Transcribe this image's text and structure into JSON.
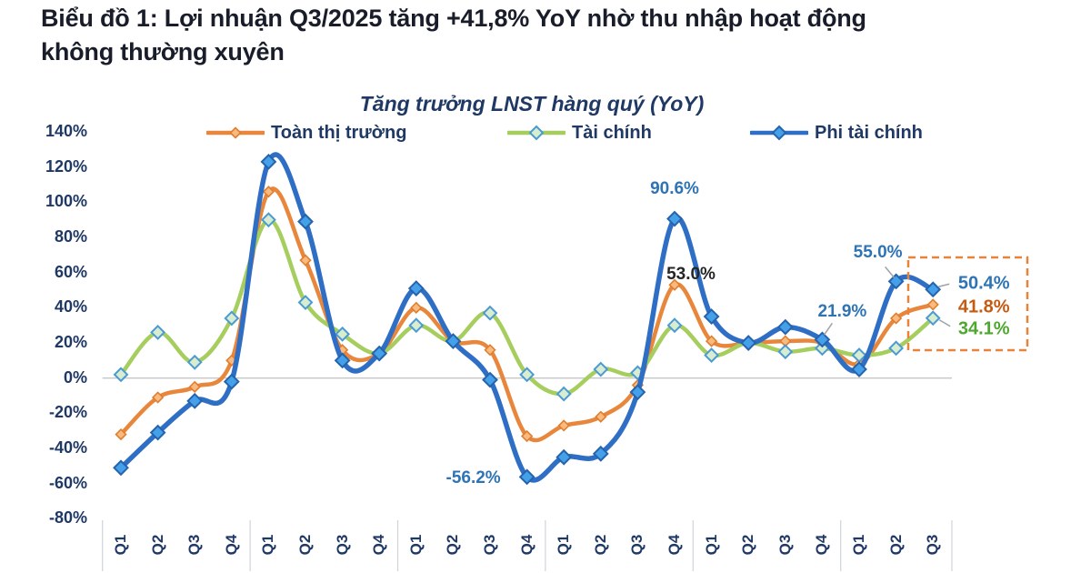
{
  "heading": {
    "line1": "Biểu đồ 1: Lợi nhuận Q3/2025 tăng +41,8% YoY nhờ thu nhập hoạt động",
    "line2": "không thường xuyên",
    "full_text": "Biểu đồ 1: Lợi nhuận Q3/2025 tăng +41,8% YoY nhờ thu nhập hoạt động không thường xuyên"
  },
  "chart_data": {
    "type": "line",
    "title": "Tăng trưởng LNST hàng quý (YoY)",
    "xlabel": "",
    "ylabel": "",
    "legend_position": "top",
    "grid": "only 0% baseline",
    "ylim": [
      -80,
      140
    ],
    "y_ticks": [
      140,
      120,
      100,
      80,
      60,
      40,
      20,
      0,
      -20,
      -40,
      -60,
      -80
    ],
    "y_tick_suffix": "%",
    "x_labels": [
      "Q1",
      "Q2",
      "Q3",
      "Q4",
      "Q1",
      "Q2",
      "Q3",
      "Q4",
      "Q1",
      "Q2",
      "Q3",
      "Q4",
      "Q1",
      "Q2",
      "Q3",
      "Q4",
      "Q1",
      "Q2",
      "Q3",
      "Q4",
      "Q1",
      "Q2",
      "Q3"
    ],
    "x_range_note": "Q1 2020 through Q3 2025, years separated by tick lines",
    "year_groups": [
      4,
      4,
      4,
      4,
      4,
      3
    ],
    "series": [
      {
        "name": "Toàn thị trường",
        "color": "#E8863C",
        "marker": "diamond",
        "values": [
          -32,
          -11,
          -5,
          10,
          106,
          67,
          16,
          14,
          40,
          21,
          16,
          -33,
          -27,
          -22,
          -4,
          53.0,
          21,
          20,
          21,
          20,
          8,
          34,
          41.8
        ]
      },
      {
        "name": "Tài chính",
        "color": "#A6CE5F",
        "marker": "diamond",
        "values": [
          2,
          26,
          9,
          34,
          90,
          43,
          25,
          14,
          30,
          21,
          37,
          2,
          -9,
          5,
          3,
          30,
          13,
          20,
          15,
          17,
          13,
          17,
          34.1
        ]
      },
      {
        "name": "Phi tài chính",
        "color": "#2F6EC5",
        "marker": "diamond",
        "values": [
          -51,
          -31,
          -13,
          -2,
          123,
          89,
          10,
          14,
          51,
          21,
          -1,
          -56.2,
          -45,
          -43,
          -8,
          90.6,
          35,
          20,
          29,
          21.9,
          5,
          55.0,
          50.4
        ]
      }
    ],
    "annotations": [
      {
        "text": "90.6%",
        "series": "Phi tài chính",
        "quarter_index": 15,
        "color": "#2E74B5",
        "bold": false
      },
      {
        "text": "53.0%",
        "series": "Toàn thị trường",
        "quarter_index": 15,
        "color": "#262626",
        "bold": false
      },
      {
        "text": "-56.2%",
        "series": "Phi tài chính",
        "quarter_index": 11,
        "color": "#2E74B5",
        "bold": false
      },
      {
        "text": "21.9%",
        "series": "Phi tài chính",
        "quarter_index": 19,
        "color": "#2E74B5",
        "bold": false
      },
      {
        "text": "55.0%",
        "series": "Phi tài chính",
        "quarter_index": 21,
        "color": "#2E74B5",
        "bold": false
      },
      {
        "text": "50.4%",
        "series": "Phi tài chính",
        "quarter_index": 22,
        "color": "#2E74B5",
        "bold": true
      },
      {
        "text": "41.8%",
        "series": "Toàn thị trường",
        "quarter_index": 22,
        "color": "#C55A11",
        "bold": true
      },
      {
        "text": "34.1%",
        "series": "Tài chính",
        "quarter_index": 22,
        "color": "#4EA72E",
        "bold": true
      }
    ],
    "highlight_box": {
      "style": "dashed",
      "color": "#E8833A",
      "covers": "Q2-Q3 2025 and end-of-line labels"
    },
    "baseline_color": "#C6C6C6"
  }
}
